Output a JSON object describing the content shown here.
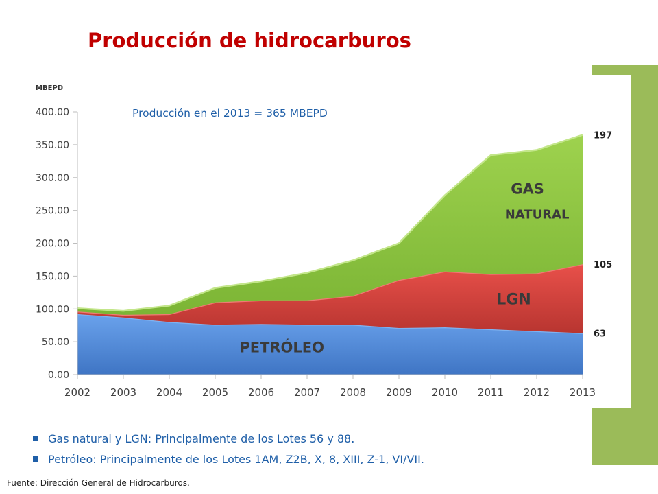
{
  "title": "Producción de hidrocarburos",
  "bullets": [
    "Gas natural y LGN: Principalmente de los Lotes 56 y 88.",
    "Petróleo: Principalmente de los Lotes 1AM, Z2B, X, 8, XIII, Z-1, VI/VII."
  ],
  "source": "Fuente: Dirección General de Hidrocarburos.",
  "colors": {
    "title": "#c00000",
    "petroleo": "#4a86d8",
    "lgn": "#d9403a",
    "gas": "#8cc43f",
    "sidebar": "#9bbb59",
    "bullets": "#1f5fa8"
  },
  "chart_data": {
    "type": "area",
    "stacked": true,
    "ylabel": "MBEPD",
    "annotation": "Producción en el 2013 = 365 MBEPD",
    "x": [
      "2002",
      "2003",
      "2004",
      "2005",
      "2006",
      "2007",
      "2008",
      "2009",
      "2010",
      "2011",
      "2012",
      "2013"
    ],
    "ylim": [
      0,
      400
    ],
    "y_ticks": [
      "0.00",
      "50.00",
      "100.00",
      "150.00",
      "200.00",
      "250.00",
      "300.00",
      "350.00",
      "400.00"
    ],
    "grid": false,
    "series": [
      {
        "name": "PETRÓLEO",
        "values": [
          92,
          87,
          80,
          76,
          77,
          76,
          76,
          71,
          72,
          69,
          66,
          63
        ]
      },
      {
        "name": "LGN",
        "values": [
          4,
          4,
          12,
          34,
          36,
          37,
          44,
          73,
          85,
          84,
          88,
          105
        ]
      },
      {
        "name": "GAS NATURAL",
        "values": [
          5,
          6,
          13,
          22,
          29,
          42,
          54,
          56,
          116,
          181,
          188,
          197
        ]
      }
    ],
    "series_labels": [
      {
        "series": "PETRÓLEO",
        "lines": [
          "PETRÓLEO"
        ]
      },
      {
        "series": "LGN",
        "lines": [
          "LGN"
        ]
      },
      {
        "series": "GAS NATURAL",
        "lines": [
          "GAS",
          "NATURAL"
        ]
      }
    ],
    "end_labels": [
      "63",
      "105",
      "197"
    ]
  }
}
